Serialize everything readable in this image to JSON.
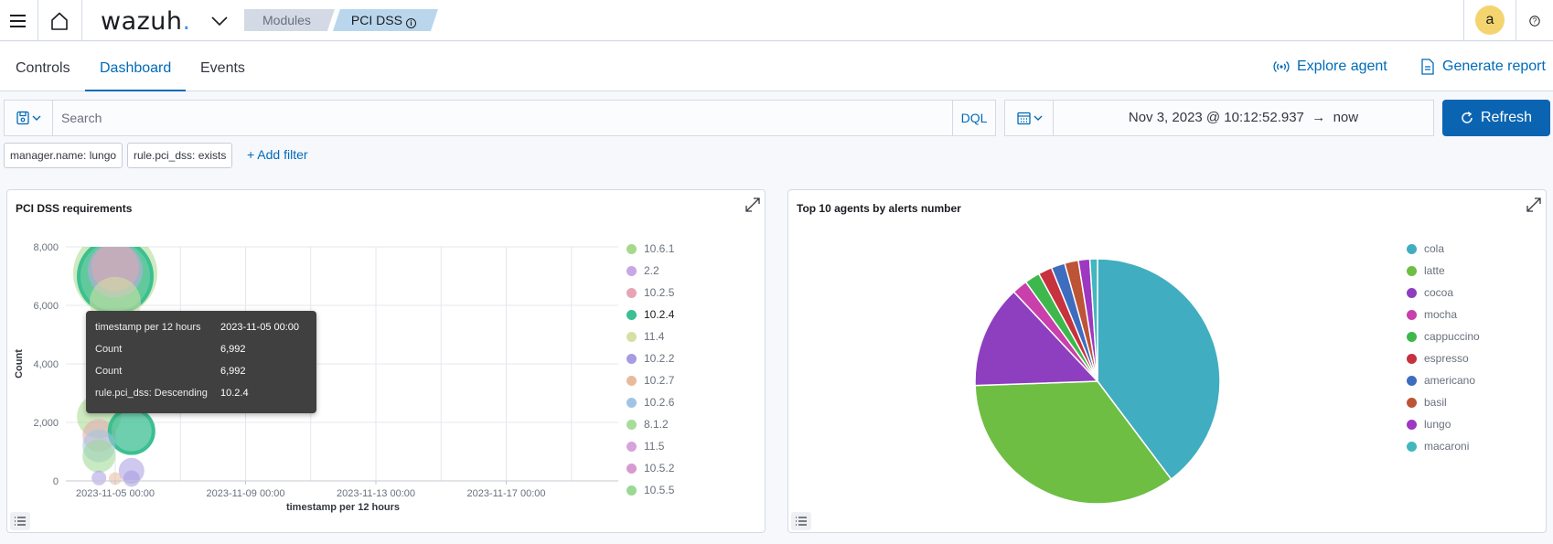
{
  "header": {
    "logo_text": "wazuh",
    "logo_dot": ".",
    "breadcrumbs": [
      "Modules",
      "PCI DSS"
    ],
    "avatar_letter": "a"
  },
  "tabs": [
    {
      "label": "Controls",
      "selected": false
    },
    {
      "label": "Dashboard",
      "selected": true
    },
    {
      "label": "Events",
      "selected": false
    }
  ],
  "actions": {
    "explore_agent": "Explore agent",
    "generate_report": "Generate report"
  },
  "query": {
    "placeholder": "Search",
    "language": "DQL",
    "date_start": "Nov 3, 2023 @ 10:12:52.937",
    "date_arrow": "→",
    "date_end": "now",
    "refresh_label": "Refresh"
  },
  "filters": [
    {
      "label": "manager.name: lungo"
    },
    {
      "label": "rule.pci_dss: exists"
    }
  ],
  "add_filter_label": "+ Add filter",
  "panels": {
    "left_title": "PCI DSS requirements",
    "right_title": "Top 10 agents by alerts number"
  },
  "tooltip": [
    {
      "key": "timestamp per 12 hours",
      "value": "2023-11-05 00:00"
    },
    {
      "key": "Count",
      "value": "6,992"
    },
    {
      "key": "Count",
      "value": "6,992"
    },
    {
      "key": "rule.pci_dss: Descending",
      "value": "10.2.4"
    }
  ],
  "chart_data": [
    {
      "type": "scatter",
      "title": "PCI DSS requirements",
      "xlabel": "timestamp per 12 hours",
      "ylabel": "Count",
      "ylim": [
        0,
        8000
      ],
      "yticks": [
        0,
        2000,
        4000,
        6000,
        8000
      ],
      "ytick_labels": [
        "0",
        "2,000",
        "4,000",
        "6,000",
        "8,000"
      ],
      "xticks": [
        "2023-11-05 00:00",
        "2023-11-09 00:00",
        "2023-11-13 00:00",
        "2023-11-17 00:00"
      ],
      "grid": true,
      "legend_position": "right",
      "legend": [
        {
          "name": "10.6.1",
          "color": "#a6d98b"
        },
        {
          "name": "2.2",
          "color": "#c9a6e4"
        },
        {
          "name": "10.2.5",
          "color": "#e6a5b5"
        },
        {
          "name": "10.2.4",
          "color": "#3cbf91"
        },
        {
          "name": "11.4",
          "color": "#d5e0a2"
        },
        {
          "name": "10.2.2",
          "color": "#a89be2"
        },
        {
          "name": "10.2.7",
          "color": "#e8bb9e"
        },
        {
          "name": "10.2.6",
          "color": "#a1c4e6"
        },
        {
          "name": "8.1.2",
          "color": "#a7dd9a"
        },
        {
          "name": "11.5",
          "color": "#d7a3dc"
        },
        {
          "name": "10.5.2",
          "color": "#d89ad1"
        },
        {
          "name": "10.5.5",
          "color": "#9ad992"
        }
      ],
      "highlighted_series": "10.2.4",
      "points": [
        {
          "series": "10.6.1",
          "x": "2023-11-05 00:00",
          "y": 7100,
          "r": 46
        },
        {
          "series": "10.2.4",
          "x": "2023-11-05 00:00",
          "y": 6992,
          "r": 40
        },
        {
          "series": "2.2",
          "x": "2023-11-05 00:00",
          "y": 7200,
          "r": 30
        },
        {
          "series": "10.2.5",
          "x": "2023-11-05 00:00",
          "y": 7300,
          "r": 26
        },
        {
          "series": "11.4",
          "x": "2023-11-05 00:00",
          "y": 6100,
          "r": 28
        },
        {
          "series": "8.1.2",
          "x": "2023-11-05 00:00",
          "y": 5000,
          "r": 26
        },
        {
          "series": "10.6.1",
          "x": "2023-11-04 12:00",
          "y": 2200,
          "r": 24
        },
        {
          "series": "10.2.5",
          "x": "2023-11-04 12:00",
          "y": 1550,
          "r": 18
        },
        {
          "series": "10.2.4",
          "x": "2023-11-05 12:00",
          "y": 1700,
          "r": 24
        },
        {
          "series": "10.2.6",
          "x": "2023-11-04 12:00",
          "y": 1200,
          "r": 18
        },
        {
          "series": "10.5.5",
          "x": "2023-11-04 12:00",
          "y": 850,
          "r": 18
        },
        {
          "series": "10.2.2",
          "x": "2023-11-05 12:00",
          "y": 350,
          "r": 14
        },
        {
          "series": "10.2.2",
          "x": "2023-11-04 12:00",
          "y": 100,
          "r": 8
        },
        {
          "series": "10.2.7",
          "x": "2023-11-05 00:00",
          "y": 80,
          "r": 7
        },
        {
          "series": "10.2.2",
          "x": "2023-11-05 12:00",
          "y": 80,
          "r": 9
        }
      ]
    },
    {
      "type": "pie",
      "title": "Top 10 agents by alerts number",
      "legend_position": "right",
      "categories": [
        "cola",
        "latte",
        "cocoa",
        "mocha",
        "cappuccino",
        "espresso",
        "americano",
        "basil",
        "lungo",
        "macaroni"
      ],
      "values": [
        39.5,
        34.5,
        13.5,
        2.0,
        2.0,
        1.8,
        1.8,
        1.8,
        1.5,
        1.0
      ],
      "colors": [
        "#41adc0",
        "#6ebe43",
        "#8d3fc0",
        "#c93fac",
        "#3eb84d",
        "#c6323e",
        "#3e6cbf",
        "#bd5436",
        "#9e37c2",
        "#42b8bd"
      ]
    }
  ]
}
